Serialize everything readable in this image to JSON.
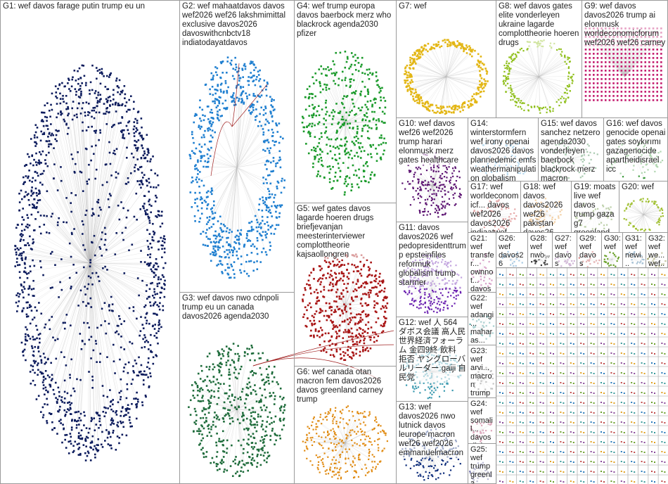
{
  "groups": [
    {
      "label": "G1: wef davos farage putin trump eu un"
    },
    {
      "label": "G2: wef mahaatdavos davos wef2026 wef26 lakshmimittal exclusive davos2026 davoswithcnbctv18 indiatodayatdavos"
    },
    {
      "label": "G3: wef davos nwo cdnpoli trump eu un canada davos2026 agenda2030"
    },
    {
      "label": "G4: wef trump europa davos baerbock merz who blackrock agenda2030 pfizer"
    },
    {
      "label": "G5: wef gates davos lagarde hoeren drugs briefjevanjan meesterinterviewer complottheorie kajsaollongren"
    },
    {
      "label": "G6: wef canada otan macron fem davos2026 davos greenland carney trump"
    },
    {
      "label": "G7: wef"
    },
    {
      "label": "G8: wef davos gates elite vonderleyen ukraine lagarde complottheorie hoeren drugs"
    },
    {
      "label": "G9: wef davos davos2026 trump ai elonmusk worldeconomicforum wef2026 wef26 carney"
    },
    {
      "label": "G10: wef davos wef26 wef2026 trump harari elonmusk merz gates healthcare"
    },
    {
      "label": "G14: winterstormfern wef irony openai davos2026 davos plannedemic emfs weathermanipulation globalism"
    },
    {
      "label": "G15: wef davos sanchez netzero agenda2030 vonderleyen baerbock blackrock merz macron"
    },
    {
      "label": "G16: wef davos genocide openai gates soykırımı gazagenocide apartheidisrael icc"
    },
    {
      "label": "G11: davos davos2026 wef pedopresidenttrump epsteinfiles reformuk globalism trump starmer"
    },
    {
      "label": "G17: wef worldeconomicf... davos wef2026 davos2026 indiaatwef indiarising..."
    },
    {
      "label": "G18: wef davos davos2026 wef26 pakistan davos26"
    },
    {
      "label": "G19: moats live wef davos trump gaza g7 greenland boardofpeace denmark"
    },
    {
      "label": "G20: wef"
    },
    {
      "label": "G12: wef 人 564 ダボス会議 高人民 世界経済フォーラム 金四9終 飲料 拒否 ヤングローバルリーダー gaiji 自民党"
    },
    {
      "label": "G13: wef davos2026 nwo lutnick davos leurope macron wef26 wef2026 emmanuelmacron"
    },
    {
      "label": "G21: wef transfer... ownnot... davos2... davos agenda... who..."
    },
    {
      "label": "G22: wef adangi... maharas... indiagr... newindia"
    },
    {
      "label": "G23: wef arvi... macron trump globalp... internat..."
    },
    {
      "label": "G24: wef somalil... davos diploma... leaders..."
    },
    {
      "label": "G25: wef trump greenla... globalis..."
    },
    {
      "label": "G26: wef davos26"
    },
    {
      "label": "G28: wef nwo"
    },
    {
      "label": "G27: wef davos crypto... trump..."
    },
    {
      "label": "G29: wef davos trump..."
    },
    {
      "label": "G30: wef"
    },
    {
      "label": "G31: wef newi... india..."
    },
    {
      "label": "G32: wef we... wef..."
    }
  ]
}
